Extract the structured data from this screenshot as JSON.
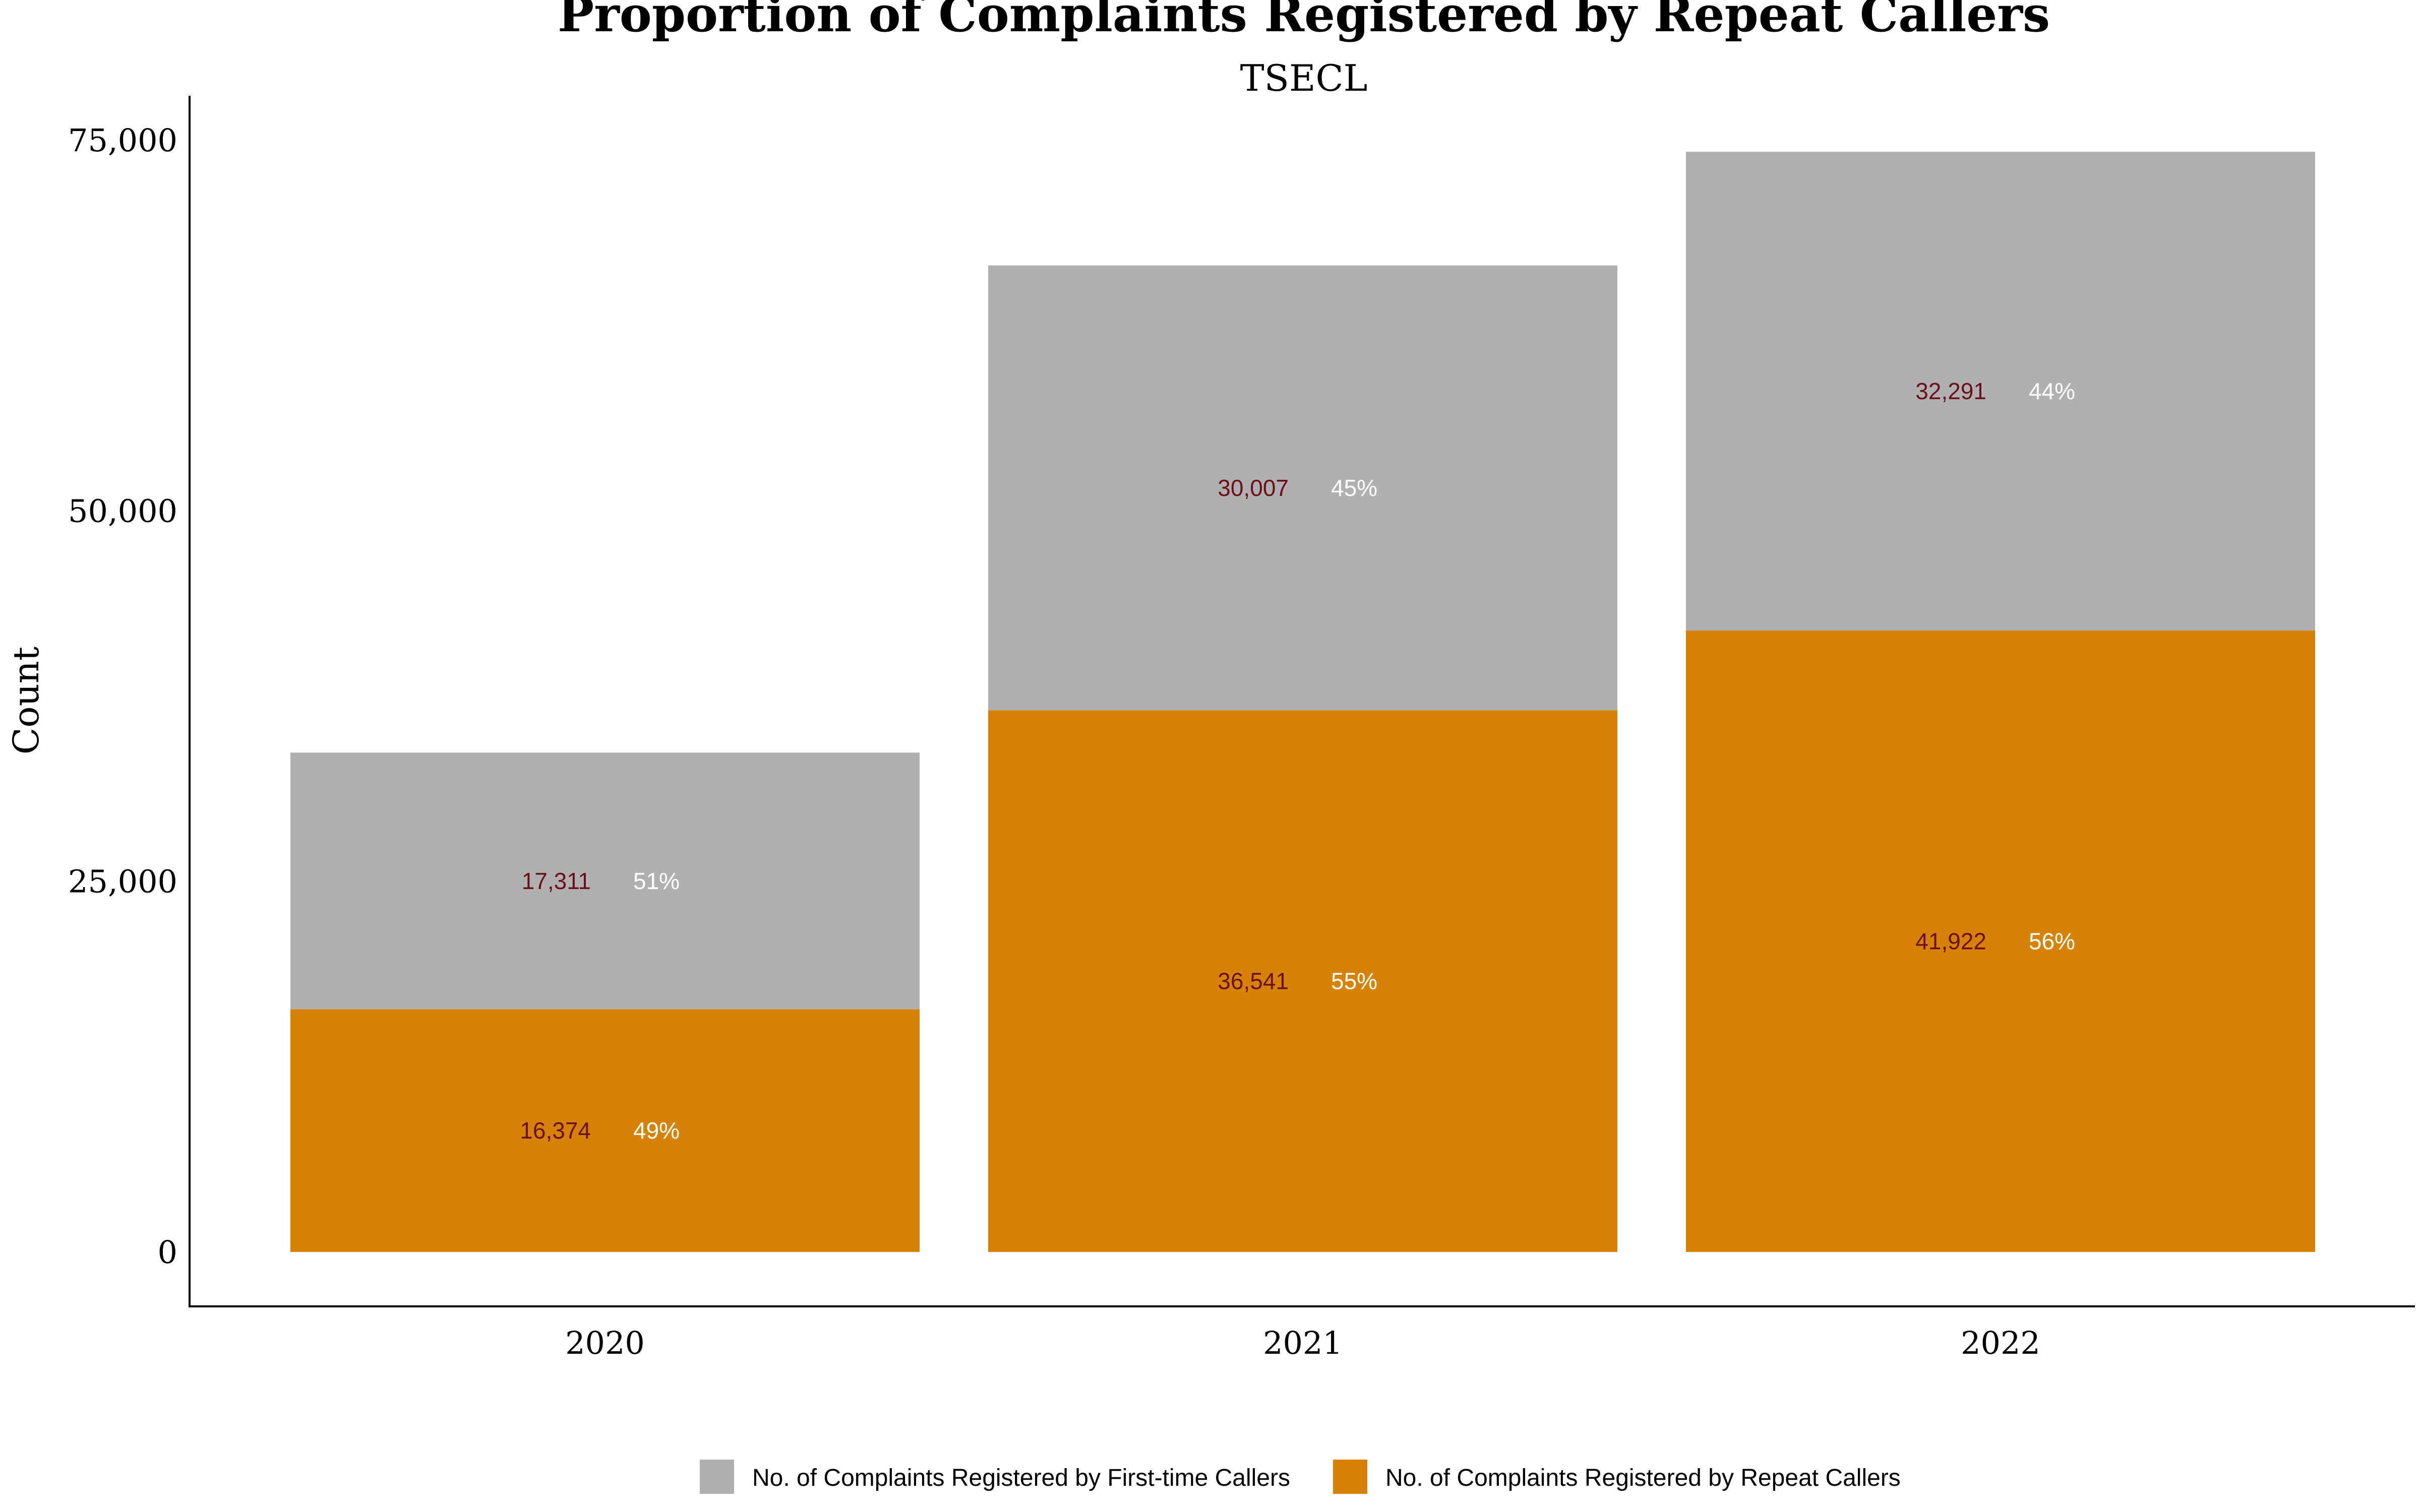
{
  "chart_data": {
    "type": "bar",
    "stacked": true,
    "title": "Proportion of Complaints Registered by Repeat Callers",
    "subtitle": "TSECL",
    "ylabel": "Count",
    "xlabel": "",
    "categories": [
      "2020",
      "2021",
      "2022"
    ],
    "ylim": [
      0,
      75000
    ],
    "yticks": [
      0,
      25000,
      50000,
      75000
    ],
    "ytick_labels": [
      "0",
      "25,000",
      "50,000",
      "75,000"
    ],
    "grid": false,
    "legend_position": "bottom",
    "series": [
      {
        "name": "No. of Complaints Registered by Repeat Callers",
        "color": "#D68206",
        "values": [
          16374,
          36541,
          41922
        ],
        "value_labels": [
          "16,374",
          "36,541",
          "41,922"
        ],
        "percent_labels": [
          "49%",
          "55%",
          "56%"
        ]
      },
      {
        "name": "No. of Complaints Registered by First-time Callers",
        "color": "#B0B0B0",
        "values": [
          17311,
          30007,
          32291
        ],
        "value_labels": [
          "17,311",
          "30,007",
          "32,291"
        ],
        "percent_labels": [
          "51%",
          "45%",
          "44%"
        ]
      }
    ],
    "legend_order": [
      1,
      0
    ],
    "value_label_color": "#6B0F1A",
    "percent_label_color": "#FFFFFF"
  }
}
